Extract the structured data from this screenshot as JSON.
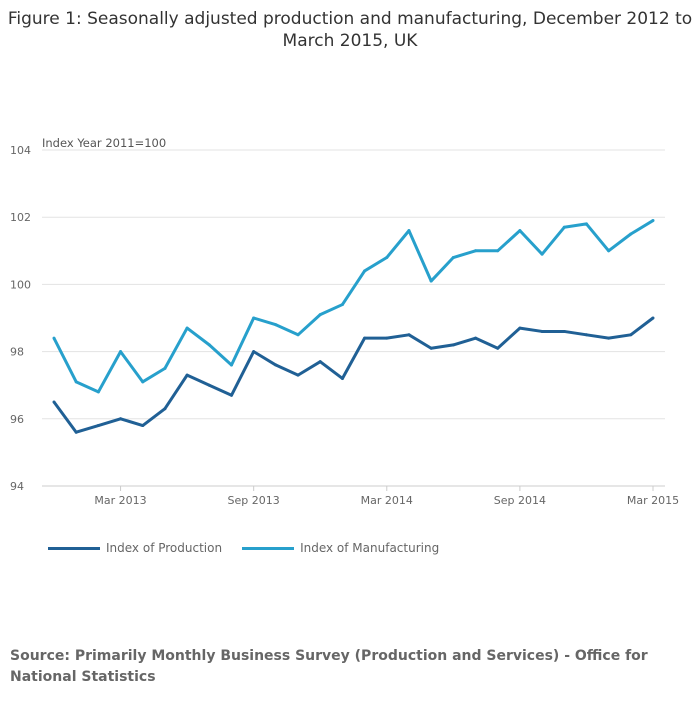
{
  "chart_data": {
    "type": "line",
    "title": "Figure 1: Seasonally adjusted production and manufacturing, December 2012 to March 2015, UK",
    "ylabel": "Index Year 2011=100",
    "ylim": [
      94,
      104
    ],
    "yticks": [
      94,
      96,
      98,
      100,
      102,
      104
    ],
    "x": [
      "Dec 2012",
      "Jan 2013",
      "Feb 2013",
      "Mar 2013",
      "Apr 2013",
      "May 2013",
      "Jun 2013",
      "Jul 2013",
      "Aug 2013",
      "Sep 2013",
      "Oct 2013",
      "Nov 2013",
      "Dec 2013",
      "Jan 2014",
      "Feb 2014",
      "Mar 2014",
      "Apr 2014",
      "May 2014",
      "Jun 2014",
      "Jul 2014",
      "Aug 2014",
      "Sep 2014",
      "Oct 2014",
      "Nov 2014",
      "Dec 2014",
      "Jan 2015",
      "Feb 2015",
      "Mar 2015"
    ],
    "xticks": [
      {
        "index": 3,
        "label": "Mar 2013"
      },
      {
        "index": 9,
        "label": "Sep 2013"
      },
      {
        "index": 15,
        "label": "Mar 2014"
      },
      {
        "index": 21,
        "label": "Sep 2014"
      },
      {
        "index": 27,
        "label": "Mar 2015"
      }
    ],
    "grid": true,
    "legend": "bottom-left",
    "series": [
      {
        "name": "Index of Production",
        "color": "#206095",
        "values": [
          96.5,
          95.6,
          95.8,
          96.0,
          95.8,
          96.3,
          97.3,
          97.0,
          96.7,
          98.0,
          97.6,
          97.3,
          97.7,
          97.2,
          98.4,
          98.4,
          98.5,
          98.1,
          98.2,
          98.4,
          98.1,
          98.7,
          98.6,
          98.6,
          98.5,
          98.4,
          98.5,
          99.0
        ]
      },
      {
        "name": "Index of Manufacturing",
        "color": "#27a0cc",
        "values": [
          98.4,
          97.1,
          96.8,
          98.0,
          97.1,
          97.5,
          98.7,
          98.2,
          97.6,
          99.0,
          98.8,
          98.5,
          99.1,
          99.4,
          100.4,
          100.8,
          101.6,
          100.1,
          100.8,
          101.0,
          101.0,
          101.6,
          100.9,
          101.7,
          101.8,
          101.0,
          101.5,
          101.9
        ]
      }
    ]
  },
  "source": "Source: Primarily Monthly Business Survey (Production and Services) - Office for National Statistics"
}
